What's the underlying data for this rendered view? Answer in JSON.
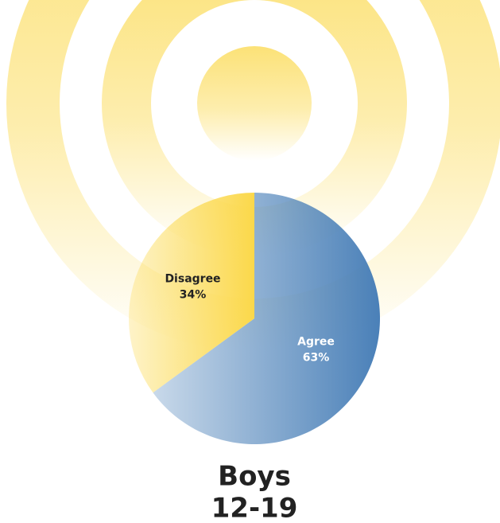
{
  "chart_data": {
    "type": "pie",
    "title": "Boys",
    "subtitle": "12-19",
    "categories": [
      "Agree",
      "Disagree"
    ],
    "values": [
      63,
      34
    ],
    "value_labels": [
      "63%",
      "34%"
    ],
    "colors": [
      "#4a80b8",
      "#fbd84a"
    ],
    "label_colors": [
      "#ffffff",
      "#222222"
    ]
  }
}
